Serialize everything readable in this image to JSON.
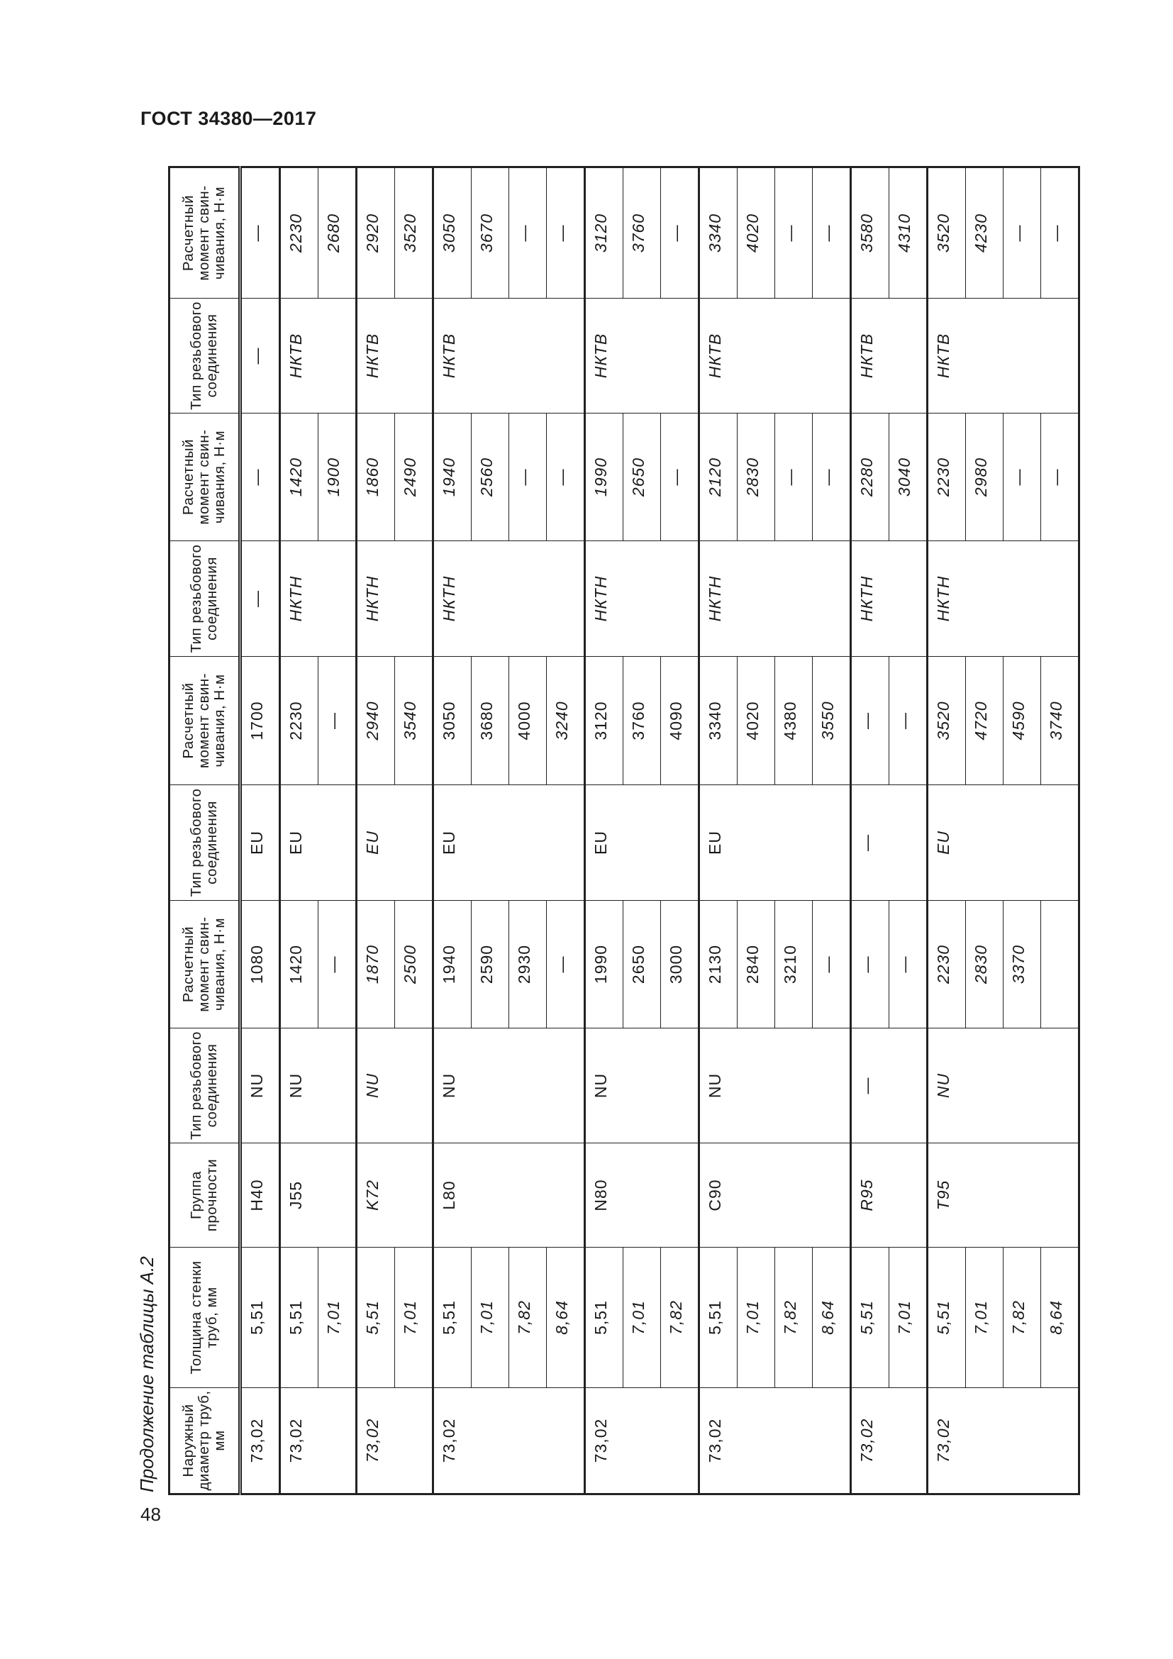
{
  "document_title": "ГОСТ 34380—2017",
  "page_number": "48",
  "caption": "Продолжение таблицы А.2",
  "headers": [
    "Наружный диаметр труб, мм",
    "Толщина стенки труб, мм",
    "Группа прочности",
    "Тип резьбового соединения",
    "Расчетный момент свин-чивания, Н·м",
    "Тип резьбового соединения",
    "Расчетный момент свин-чивания, Н·м",
    "Тип резьбового соединения",
    "Расчетный момент свин-чивания, Н·м",
    "Тип резьбового соединения",
    "Расчетный момент свин-чивания, Н·м"
  ],
  "groups": [
    {
      "od": "73,02",
      "grade": "H40",
      "nu_type": "NU",
      "eu_type": "EU",
      "nktn_type": "—",
      "nktv_type": "—",
      "italic": false,
      "rows": [
        {
          "t": "5,51",
          "nu": "1080",
          "eu": "1700",
          "nktn": "—",
          "nktv": "—"
        }
      ]
    },
    {
      "od": "73,02",
      "grade": "J55",
      "nu_type": "NU",
      "eu_type": "EU",
      "nktn_type": "НКТН",
      "nktv_type": "НКТВ",
      "italic": false,
      "rows": [
        {
          "t": "5,51",
          "nu": "1420",
          "eu": "2230",
          "nktn": "1420",
          "nktv": "2230"
        },
        {
          "t": "7,01",
          "nu": "—",
          "eu": "—",
          "nktn": "1900",
          "nktv": "2680"
        }
      ]
    },
    {
      "od": "73,02",
      "grade": "K72",
      "nu_type": "NU",
      "eu_type": "EU",
      "nktn_type": "НКТН",
      "nktv_type": "НКТВ",
      "italic": true,
      "rows": [
        {
          "t": "5,51",
          "nu": "1870",
          "eu": "2940",
          "nktn": "1860",
          "nktv": "2920"
        },
        {
          "t": "7,01",
          "nu": "2500",
          "eu": "3540",
          "nktn": "2490",
          "nktv": "3520"
        }
      ]
    },
    {
      "od": "73,02",
      "grade": "L80",
      "nu_type": "NU",
      "eu_type": "EU",
      "nktn_type": "НКТН",
      "nktv_type": "НКТВ",
      "italic": false,
      "rows": [
        {
          "t": "5,51",
          "nu": "1940",
          "eu": "3050",
          "nktn": "1940",
          "nktv": "3050"
        },
        {
          "t": "7,01",
          "nu": "2590",
          "eu": "3680",
          "nktn": "2560",
          "nktv": "3670"
        },
        {
          "t": "7,82",
          "nu": "2930",
          "eu": "4000",
          "nktn": "—",
          "nktv": "—"
        },
        {
          "t": "8,64",
          "nu": "—",
          "eu": "3240",
          "nktn": "—",
          "nktv": "—"
        }
      ]
    },
    {
      "od": "73,02",
      "grade": "N80",
      "nu_type": "NU",
      "eu_type": "EU",
      "nktn_type": "НКТН",
      "nktv_type": "НКТВ",
      "italic": false,
      "rows": [
        {
          "t": "5,51",
          "nu": "1990",
          "eu": "3120",
          "nktn": "1990",
          "nktv": "3120"
        },
        {
          "t": "7,01",
          "nu": "2650",
          "eu": "3760",
          "nktn": "2650",
          "nktv": "3760"
        },
        {
          "t": "7,82",
          "nu": "3000",
          "eu": "4090",
          "nktn": "—",
          "nktv": "—"
        }
      ]
    },
    {
      "od": "73,02",
      "grade": "C90",
      "nu_type": "NU",
      "eu_type": "EU",
      "nktn_type": "НКТН",
      "nktv_type": "НКТВ",
      "italic": false,
      "rows": [
        {
          "t": "5,51",
          "nu": "2130",
          "eu": "3340",
          "nktn": "2120",
          "nktv": "3340"
        },
        {
          "t": "7,01",
          "nu": "2840",
          "eu": "4020",
          "nktn": "2830",
          "nktv": "4020"
        },
        {
          "t": "7,82",
          "nu": "3210",
          "eu": "4380",
          "nktn": "—",
          "nktv": "—"
        },
        {
          "t": "8,64",
          "nu": "—",
          "eu": "3550",
          "nktn": "—",
          "nktv": "—"
        }
      ]
    },
    {
      "od": "73,02",
      "grade": "R95",
      "nu_type": "—",
      "eu_type": "—",
      "nktn_type": "НКТН",
      "nktv_type": "НКТВ",
      "italic": true,
      "rows": [
        {
          "t": "5,51",
          "nu": "—",
          "eu": "—",
          "nktn": "2280",
          "nktv": "3580"
        },
        {
          "t": "7,01",
          "nu": "—",
          "eu": "—",
          "nktn": "3040",
          "nktv": "4310"
        }
      ]
    },
    {
      "od": "73,02",
      "grade": "T95",
      "nu_type": "NU",
      "eu_type": "EU",
      "nktn_type": "НКТН",
      "nktv_type": "НКТВ",
      "italic": true,
      "rows": [
        {
          "t": "5,51",
          "nu": "2230",
          "eu": "3520",
          "nktn": "2230",
          "nktv": "3520"
        },
        {
          "t": "7,01",
          "nu": "2830",
          "eu": "4720",
          "nktn": "2980",
          "nktv": "4230"
        },
        {
          "t": "7,82",
          "nu": "3370",
          "eu": "4590",
          "nktn": "—",
          "nktv": "—"
        },
        {
          "t": "8,64",
          "nu": "",
          "eu": "3740",
          "nktn": "—",
          "nktv": "—"
        }
      ]
    }
  ]
}
